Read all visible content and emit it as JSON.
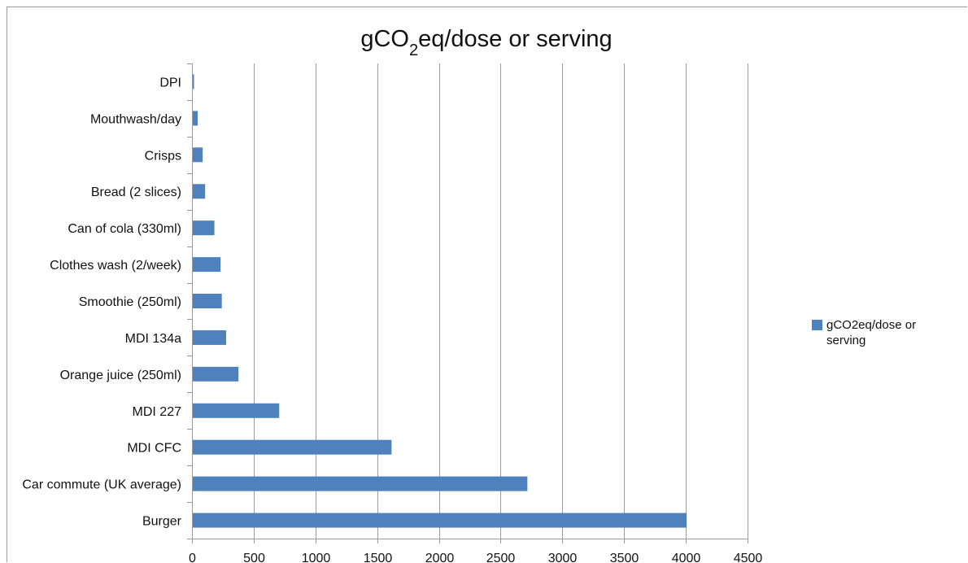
{
  "chart_data": {
    "type": "bar",
    "orientation": "horizontal",
    "title": {
      "main": "gCO",
      "sub": "2",
      "rest": "eq/dose or serving"
    },
    "categories": [
      "DPI",
      "Mouthwash/day",
      "Crisps",
      "Bread (2 slices)",
      "Can of cola (330ml)",
      "Clothes wash (2/week)",
      "Smoothie (250ml)",
      "MDI 134a",
      "Orange juice (250ml)",
      "MDI 227",
      "MDI CFC",
      "Car commute (UK average)",
      "Burger"
    ],
    "series": [
      {
        "name": "gCO2eq/dose or serving",
        "color": "#4f81bd",
        "values": [
          10,
          40,
          80,
          100,
          175,
          225,
          235,
          270,
          370,
          700,
          1610,
          2710,
          4000
        ]
      }
    ],
    "xlim": [
      0,
      4500
    ],
    "xticks": [
      "0",
      "500",
      "1000",
      "1500",
      "2000",
      "2500",
      "3000",
      "3500",
      "4000",
      "4500"
    ],
    "grid": "vertical",
    "legend_position": "right"
  }
}
